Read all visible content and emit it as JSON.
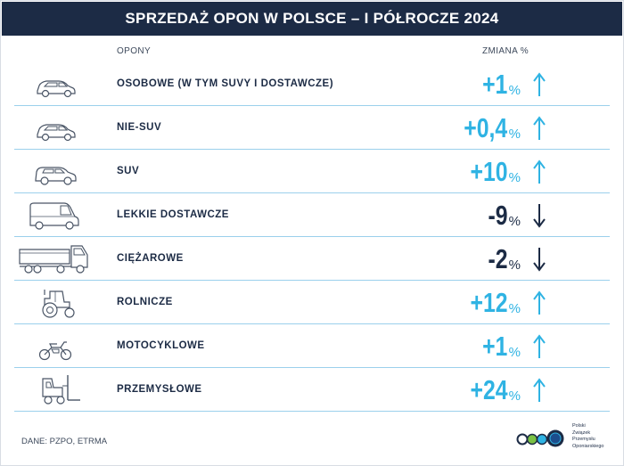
{
  "header": {
    "title": "SPRZEDAŻ OPON W POLSCE – I PÓŁROCZE 2024"
  },
  "columns": {
    "tires": "OPONY",
    "change": "ZMIANA %"
  },
  "source": "DANE: PZPO, ETRMA",
  "logo": {
    "lines": [
      "Polski",
      "Związek",
      "Przemysłu",
      "Oponiarskiego"
    ]
  },
  "colors": {
    "header_bg": "#1c2b45",
    "positive": "#2fb3e3",
    "negative": "#1c2b45",
    "divider": "#9bd0ec"
  },
  "chart_data": {
    "type": "table",
    "title": "SPRZEDAŻ OPON W POLSCE – I PÓŁROCZE 2024",
    "columns": [
      "OPONY",
      "ZMIANA %"
    ],
    "rows": [
      {
        "category": "OSOBOWE (W TYM SUVY I DOSTAWCZE)",
        "value_text": "+1",
        "unit": "%",
        "value": 1,
        "direction": "up",
        "icon": "car-icon"
      },
      {
        "category": "NIE-SUV",
        "value_text": "+0,4",
        "unit": "%",
        "value": 0.4,
        "direction": "up",
        "icon": "car-icon"
      },
      {
        "category": "SUV",
        "value_text": "+10",
        "unit": "%",
        "value": 10,
        "direction": "up",
        "icon": "suv-icon"
      },
      {
        "category": "LEKKIE DOSTAWCZE",
        "value_text": "-9",
        "unit": "%",
        "value": -9,
        "direction": "down",
        "icon": "van-icon"
      },
      {
        "category": "CIĘŻAROWE",
        "value_text": "-2",
        "unit": "%",
        "value": -2,
        "direction": "down",
        "icon": "truck-icon"
      },
      {
        "category": "ROLNICZE",
        "value_text": "+12",
        "unit": "%",
        "value": 12,
        "direction": "up",
        "icon": "tractor-icon"
      },
      {
        "category": "MOTOCYKLOWE",
        "value_text": "+1",
        "unit": "%",
        "value": 1,
        "direction": "up",
        "icon": "motorcycle-icon"
      },
      {
        "category": "PRZEMYSŁOWE",
        "value_text": "+24",
        "unit": "%",
        "value": 24,
        "direction": "up",
        "icon": "forklift-icon"
      }
    ]
  }
}
